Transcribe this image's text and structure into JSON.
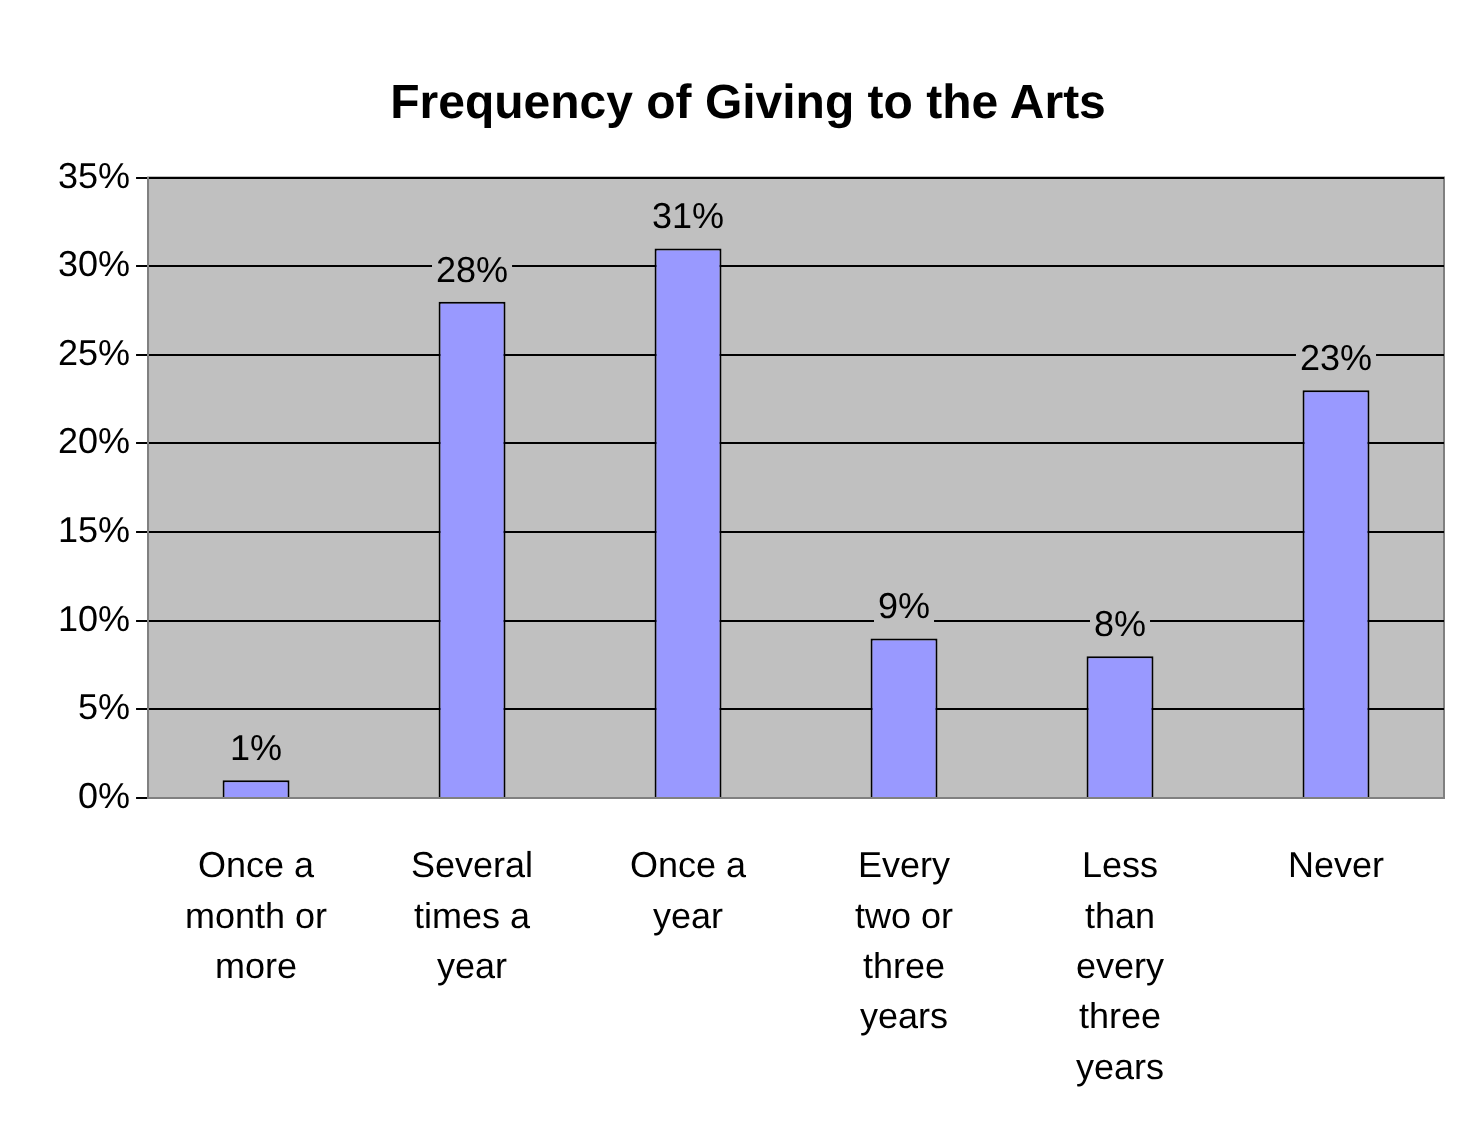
{
  "chart_data": {
    "type": "bar",
    "title": "Frequency of Giving to the Arts",
    "categories": [
      "Once a month or more",
      "Several times a year",
      "Once a year",
      "Every two or three years",
      "Less than every three years",
      "Never"
    ],
    "values": [
      1,
      28,
      31,
      9,
      8,
      23
    ],
    "value_labels": [
      "1%",
      "28%",
      "31%",
      "9%",
      "8%",
      "23%"
    ],
    "color": "#9999ff",
    "ylim": [
      0,
      35
    ],
    "yticks": [
      {
        "value": 0,
        "label": "0%"
      },
      {
        "value": 5,
        "label": "5%"
      },
      {
        "value": 10,
        "label": "10%"
      },
      {
        "value": 15,
        "label": "15%"
      },
      {
        "value": 20,
        "label": "20%"
      },
      {
        "value": 25,
        "label": "25%"
      },
      {
        "value": 30,
        "label": "30%"
      },
      {
        "value": 35,
        "label": "35%"
      }
    ],
    "grid": "y",
    "legend": false
  }
}
